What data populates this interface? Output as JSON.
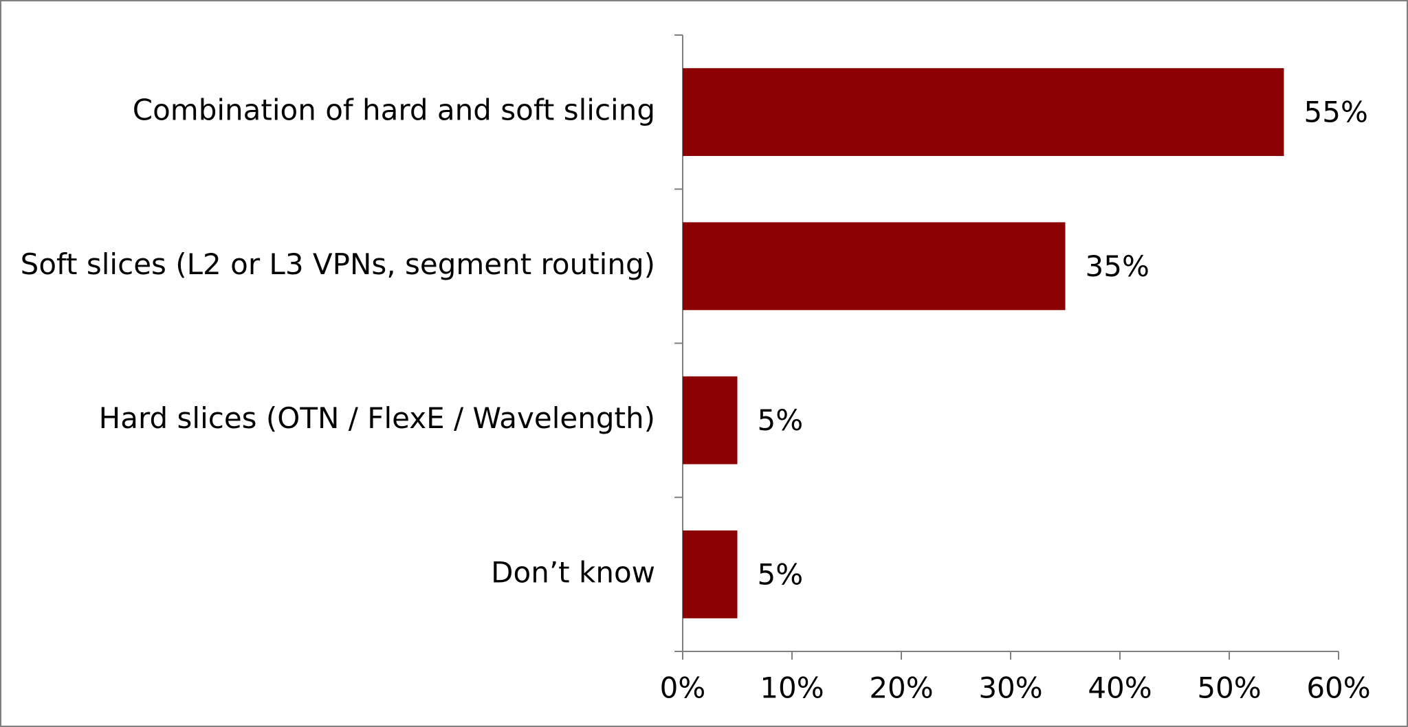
{
  "chart_data": {
    "type": "barh",
    "categories": [
      "Combination of hard and soft slicing",
      "Soft slices (L2 or L3 VPNs, segment routing)",
      "Hard slices (OTN / FlexE / Wavelength)",
      "Don’t know"
    ],
    "values": [
      55,
      35,
      5,
      5
    ],
    "value_labels": [
      "55%",
      "35%",
      "5%",
      "5%"
    ],
    "color": "#8b0000",
    "xlim": [
      0,
      60
    ],
    "xticks": [
      {
        "value": 0,
        "label": "0%"
      },
      {
        "value": 10,
        "label": "10%"
      },
      {
        "value": 20,
        "label": "20%"
      },
      {
        "value": 30,
        "label": "30%"
      },
      {
        "value": 40,
        "label": "40%"
      },
      {
        "value": 50,
        "label": "50%"
      },
      {
        "value": 60,
        "label": "60%"
      }
    ],
    "grid": false
  }
}
